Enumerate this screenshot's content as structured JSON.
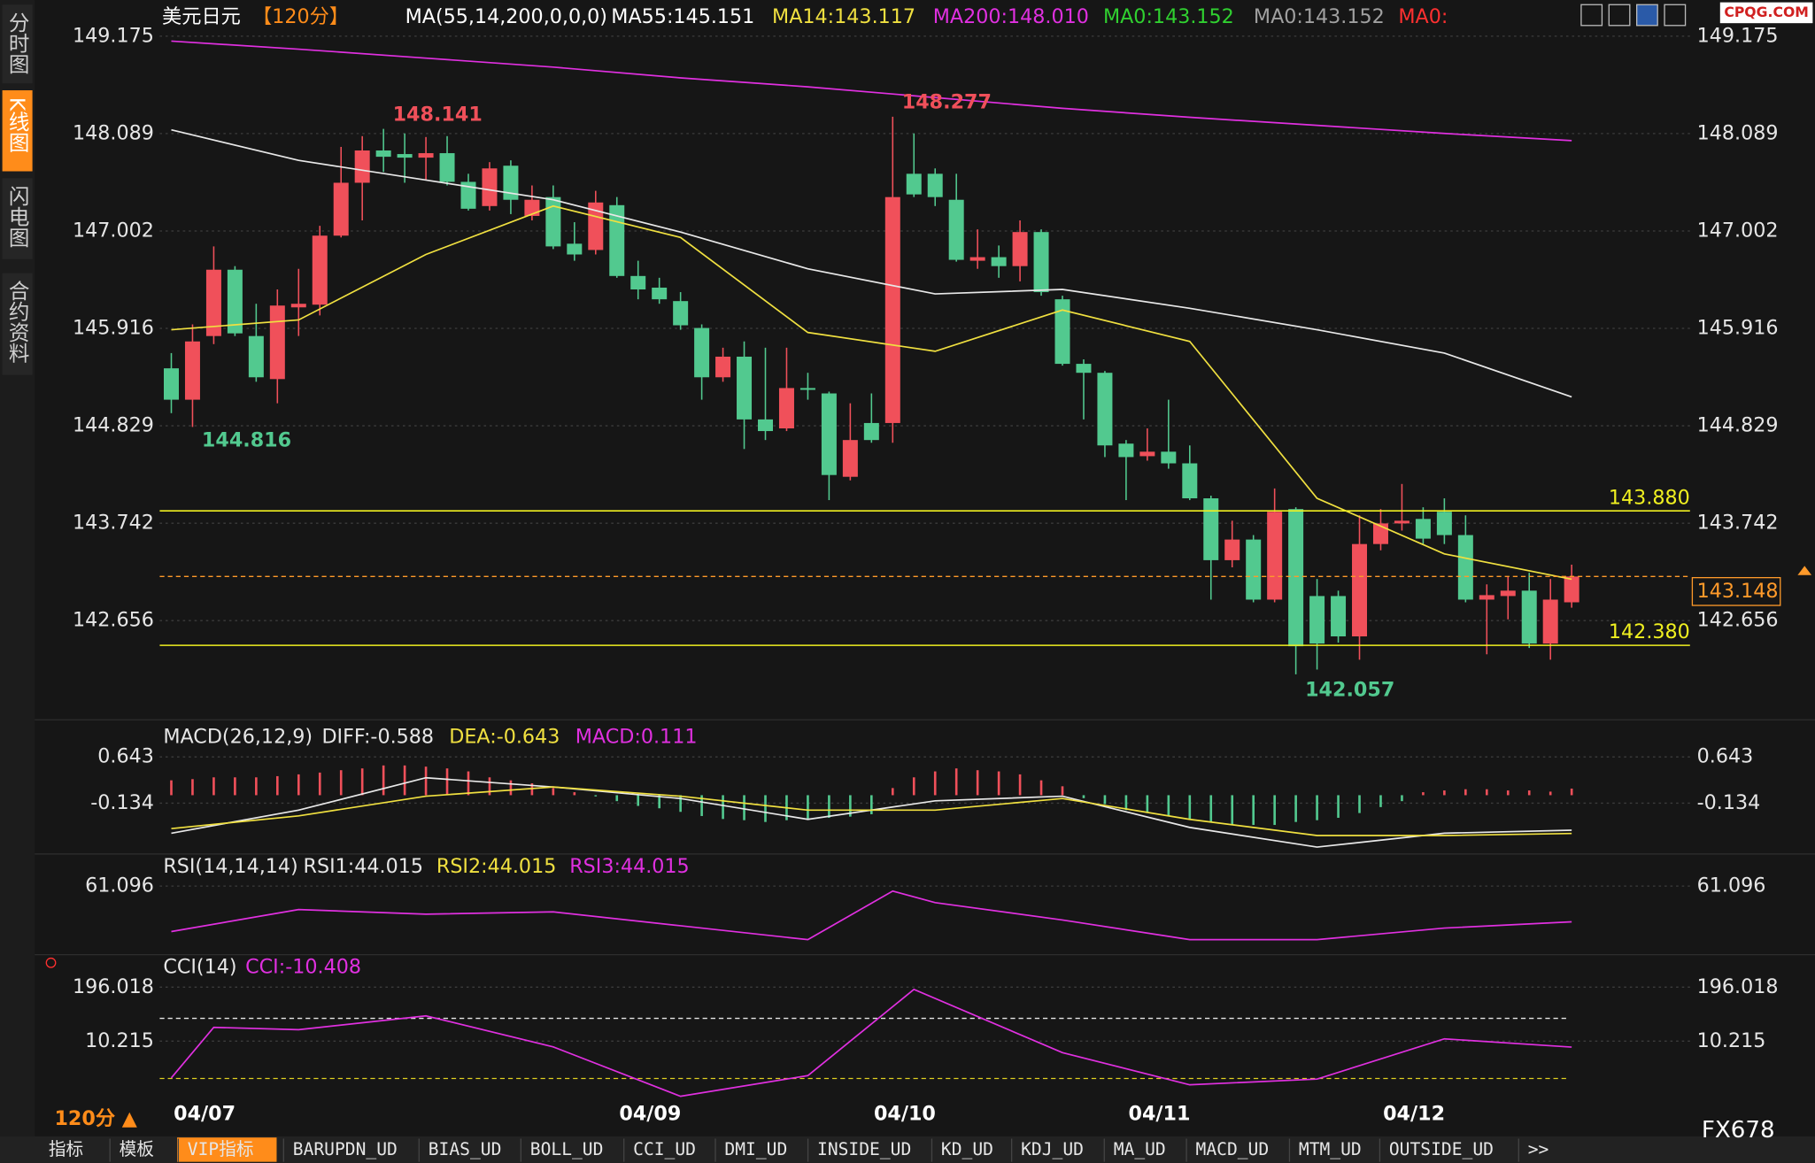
{
  "header": {
    "icons_watermark": "CPQG.COM"
  },
  "sidebar": {
    "items": [
      "分时图",
      "K线图",
      "闪电图",
      "合约资料"
    ]
  },
  "footer": {
    "period": "120分 ▲",
    "brand": "FX678",
    "tabs": [
      "指标",
      "模板",
      "VIP指标",
      "BARUPDN_UD",
      "BIAS_UD",
      "BOLL_UD",
      "CCI_UD",
      "DMI_UD",
      "INSIDE_UD",
      "KD_UD",
      "KDJ_UD",
      "MA_UD",
      "MACD_UD",
      "MTM_UD",
      "OUTSIDE_UD",
      ">>"
    ]
  },
  "chart_data": [
    {
      "type": "candlestick",
      "legend": [
        {
          "text": "美元日元",
          "color": "#ffffff"
        },
        {
          "text": "【120分】",
          "color": "#ff8c1a"
        },
        {
          "text": "MA(55,14,200,0,0,0)",
          "color": "#ffffff"
        },
        {
          "text": "MA55:145.151",
          "color": "#ffffff"
        },
        {
          "text": "MA14:143.117",
          "color": "#f0e040"
        },
        {
          "text": "MA200:148.010",
          "color": "#e030e0"
        },
        {
          "text": "MA0:143.152",
          "color": "#30d030"
        },
        {
          "text": "MA0:143.152",
          "color": "#a0a0a0"
        },
        {
          "text": "MA0:",
          "color": "#ff3030"
        }
      ],
      "categories": [
        "04/07",
        null,
        null,
        null,
        null,
        null,
        null,
        null,
        null,
        null,
        null,
        null,
        null,
        null,
        null,
        null,
        null,
        null,
        null,
        null,
        null,
        "04/09",
        null,
        null,
        null,
        null,
        null,
        null,
        null,
        null,
        null,
        null,
        null,
        "04/10",
        null,
        null,
        null,
        null,
        null,
        null,
        null,
        null,
        null,
        null,
        null,
        "04/11",
        null,
        null,
        null,
        null,
        null,
        null,
        null,
        null,
        null,
        null,
        null,
        "04/12",
        null,
        null,
        null,
        null,
        null,
        null,
        null,
        null,
        null
      ],
      "candles": [
        [
          145.47,
          145.64,
          144.97,
          145.12
        ],
        [
          145.12,
          145.96,
          144.816,
          145.77
        ],
        [
          145.83,
          146.83,
          145.74,
          146.57
        ],
        [
          146.57,
          146.61,
          145.83,
          145.86
        ],
        [
          145.83,
          146.19,
          145.32,
          145.37
        ],
        [
          145.35,
          146.35,
          145.08,
          146.17
        ],
        [
          146.15,
          146.58,
          145.83,
          146.19
        ],
        [
          146.18,
          147.06,
          146.06,
          146.95
        ],
        [
          146.95,
          147.94,
          146.93,
          147.54
        ],
        [
          147.54,
          148.06,
          147.12,
          147.9
        ],
        [
          147.9,
          148.141,
          147.66,
          147.83
        ],
        [
          147.86,
          148.09,
          147.54,
          147.82
        ],
        [
          147.82,
          148.05,
          147.57,
          147.87
        ],
        [
          147.87,
          148.06,
          147.51,
          147.55
        ],
        [
          147.55,
          147.64,
          147.23,
          147.25
        ],
        [
          147.28,
          147.77,
          147.23,
          147.7
        ],
        [
          147.73,
          147.79,
          147.19,
          147.35
        ],
        [
          147.17,
          147.51,
          147.12,
          147.35
        ],
        [
          147.38,
          147.51,
          146.8,
          146.83
        ],
        [
          146.86,
          147.1,
          146.67,
          146.74
        ],
        [
          146.79,
          147.45,
          146.74,
          147.32
        ],
        [
          147.29,
          147.38,
          146.48,
          146.5
        ],
        [
          146.5,
          146.67,
          146.24,
          146.35
        ],
        [
          146.37,
          146.48,
          146.19,
          146.24
        ],
        [
          146.22,
          146.32,
          145.9,
          145.95
        ],
        [
          145.92,
          145.96,
          145.12,
          145.37
        ],
        [
          145.37,
          145.7,
          145.32,
          145.6
        ],
        [
          145.6,
          145.77,
          144.57,
          144.9
        ],
        [
          144.9,
          145.7,
          144.67,
          144.77
        ],
        [
          144.8,
          145.7,
          144.77,
          145.25
        ],
        [
          145.25,
          145.42,
          145.12,
          145.23
        ],
        [
          145.19,
          145.21,
          144.0,
          144.28
        ],
        [
          144.26,
          145.08,
          144.22,
          144.67
        ],
        [
          144.86,
          145.19,
          144.64,
          144.67
        ],
        [
          144.86,
          148.277,
          144.64,
          147.38
        ],
        [
          147.64,
          148.09,
          147.38,
          147.41
        ],
        [
          147.64,
          147.7,
          147.28,
          147.38
        ],
        [
          147.35,
          147.64,
          146.66,
          146.68
        ],
        [
          146.67,
          147.02,
          146.58,
          146.71
        ],
        [
          146.71,
          146.84,
          146.48,
          146.61
        ],
        [
          146.61,
          147.12,
          146.44,
          146.99
        ],
        [
          146.99,
          147.02,
          146.28,
          146.32
        ],
        [
          146.24,
          146.28,
          145.5,
          145.52
        ],
        [
          145.52,
          145.57,
          144.9,
          145.42
        ],
        [
          145.42,
          145.44,
          144.48,
          144.61
        ],
        [
          144.63,
          144.67,
          144.0,
          144.48
        ],
        [
          144.49,
          144.8,
          144.44,
          144.54
        ],
        [
          144.54,
          145.12,
          144.35,
          144.41
        ],
        [
          144.41,
          144.61,
          144.0,
          144.02
        ],
        [
          144.02,
          144.05,
          142.89,
          143.33
        ],
        [
          143.33,
          143.77,
          143.25,
          143.56
        ],
        [
          143.56,
          143.61,
          142.86,
          142.89
        ],
        [
          142.89,
          144.13,
          142.86,
          143.87
        ],
        [
          143.9,
          143.92,
          142.057,
          142.37
        ],
        [
          142.93,
          143.12,
          142.11,
          142.4
        ],
        [
          142.93,
          142.99,
          142.41,
          142.48
        ],
        [
          142.48,
          143.83,
          142.22,
          143.51
        ],
        [
          143.51,
          143.9,
          143.44,
          143.74
        ],
        [
          143.74,
          144.18,
          143.66,
          143.77
        ],
        [
          143.79,
          143.92,
          143.51,
          143.57
        ],
        [
          143.87,
          144.02,
          143.51,
          143.61
        ],
        [
          143.61,
          143.83,
          142.86,
          142.89
        ],
        [
          142.89,
          143.06,
          142.28,
          142.94
        ],
        [
          142.93,
          143.15,
          142.67,
          142.99
        ],
        [
          142.99,
          143.19,
          142.35,
          142.4
        ],
        [
          142.4,
          143.12,
          142.22,
          142.89
        ],
        [
          142.86,
          143.28,
          142.8,
          143.148
        ]
      ],
      "up_color": "#f0505a",
      "down_color": "#52c98f",
      "series": [
        {
          "color": "#e030e0",
          "x": [
            0,
            6,
            12,
            18,
            24,
            30,
            36,
            42,
            48,
            54,
            60,
            66
          ],
          "values": [
            149.12,
            149.03,
            148.93,
            148.83,
            148.71,
            148.61,
            148.49,
            148.37,
            148.27,
            148.18,
            148.09,
            148.01
          ]
        },
        {
          "color": "#e8e8e8",
          "x": [
            0,
            6,
            12,
            18,
            24,
            30,
            36,
            42,
            48,
            54,
            60,
            66
          ],
          "values": [
            148.13,
            147.79,
            147.57,
            147.35,
            146.99,
            146.58,
            146.3,
            146.35,
            146.14,
            145.9,
            145.64,
            145.151
          ]
        },
        {
          "color": "#f0e040",
          "x": [
            0,
            6,
            12,
            18,
            24,
            30,
            36,
            42,
            48,
            54,
            60,
            66
          ],
          "values": [
            145.9,
            146.01,
            146.74,
            147.28,
            146.93,
            145.87,
            145.66,
            146.12,
            145.77,
            144.02,
            143.4,
            143.117
          ]
        }
      ],
      "hlines": [
        {
          "value": 143.88,
          "label": "143.880"
        },
        {
          "value": 142.38,
          "label": "142.380"
        }
      ],
      "hline_color": "#f0f020",
      "price_color": "#ff9a2a",
      "ylim": [
        141.64,
        149.32
      ],
      "yticks": [
        149.175,
        148.089,
        147.002,
        145.916,
        144.829,
        143.742,
        142.656
      ]
    },
    {
      "type": "line",
      "legend": [
        {
          "text": "MACD(26,12,9)",
          "color": "#e6e6e6"
        },
        {
          "text": "DIFF:-0.588",
          "color": "#e6e6e6"
        },
        {
          "text": "DEA:-0.643",
          "color": "#f0e040"
        },
        {
          "text": "MACD:0.111",
          "color": "#e030e0"
        }
      ],
      "histogram": [
        0.25,
        0.27,
        0.3,
        0.3,
        0.3,
        0.32,
        0.35,
        0.38,
        0.42,
        0.45,
        0.5,
        0.5,
        0.48,
        0.45,
        0.4,
        0.3,
        0.25,
        0.2,
        0.12,
        0.05,
        -0.02,
        -0.1,
        -0.18,
        -0.22,
        -0.28,
        -0.35,
        -0.4,
        -0.42,
        -0.45,
        -0.42,
        -0.4,
        -0.38,
        -0.36,
        -0.32,
        0.12,
        0.3,
        0.4,
        0.45,
        0.42,
        0.4,
        0.35,
        0.25,
        0.15,
        -0.05,
        -0.15,
        -0.25,
        -0.3,
        -0.35,
        -0.4,
        -0.45,
        -0.5,
        -0.5,
        -0.5,
        -0.45,
        -0.42,
        -0.38,
        -0.3,
        -0.2,
        -0.1,
        0.05,
        0.08,
        0.1,
        0.1,
        0.08,
        0.08,
        0.06,
        0.111
      ],
      "up_color": "#f0505a",
      "down_color": "#52c98f",
      "series": [
        {
          "color": "#e8e8e8",
          "x": [
            0,
            6,
            12,
            18,
            24,
            30,
            36,
            42,
            48,
            54,
            60,
            66
          ],
          "values": [
            -0.639,
            -0.251,
            0.293,
            0.138,
            -0.056,
            -0.406,
            -0.095,
            -0.017,
            -0.542,
            -0.872,
            -0.639,
            -0.588
          ]
        },
        {
          "color": "#f0e040",
          "x": [
            0,
            6,
            12,
            18,
            24,
            30,
            36,
            42,
            48,
            54,
            60,
            66
          ],
          "values": [
            -0.561,
            -0.348,
            -0.017,
            0.138,
            -0.017,
            -0.251,
            -0.251,
            -0.056,
            -0.406,
            -0.678,
            -0.678,
            -0.643
          ]
        }
      ],
      "ylim": [
        -0.93,
        0.82
      ],
      "yticks": [
        0.643,
        -0.134
      ]
    },
    {
      "type": "line",
      "legend": [
        {
          "text": "RSI(14,14,14)",
          "color": "#e6e6e6"
        },
        {
          "text": "RSI1:44.015",
          "color": "#e6e6e6"
        },
        {
          "text": "RSI2:44.015",
          "color": "#f0e040"
        },
        {
          "text": "RSI3:44.015",
          "color": "#e030e0"
        }
      ],
      "series": [
        {
          "color": "#e030e0",
          "x": [
            0,
            6,
            12,
            18,
            24,
            30,
            34,
            36,
            42,
            48,
            54,
            60,
            66
          ],
          "values": [
            39.39,
            49.88,
            47.67,
            48.78,
            42.15,
            35.52,
            58.7,
            53.2,
            44.91,
            35.52,
            35.52,
            41.05,
            44.015
          ]
        }
      ],
      "ylim": [
        30,
        67
      ],
      "yticks": [
        61.096
      ]
    },
    {
      "type": "line",
      "legend": [
        {
          "text": "CCI(14)",
          "color": "#e6e6e6"
        },
        {
          "text": "CCI:-10.408",
          "color": "#e030e0"
        }
      ],
      "series": [
        {
          "color": "#e030e0",
          "x": [
            0,
            2,
            6,
            12,
            18,
            24,
            30,
            35,
            42,
            48,
            54,
            60,
            66
          ],
          "values": [
            -116.3,
            57.6,
            49.7,
            97.2,
            -9.6,
            -179.6,
            -108.4,
            188.1,
            -29.3,
            -140.0,
            -120.3,
            18.1,
            -10.408
          ]
        }
      ],
      "ylim": [
        -190,
        228
      ],
      "yticks": [
        196.018,
        10.215
      ]
    }
  ]
}
